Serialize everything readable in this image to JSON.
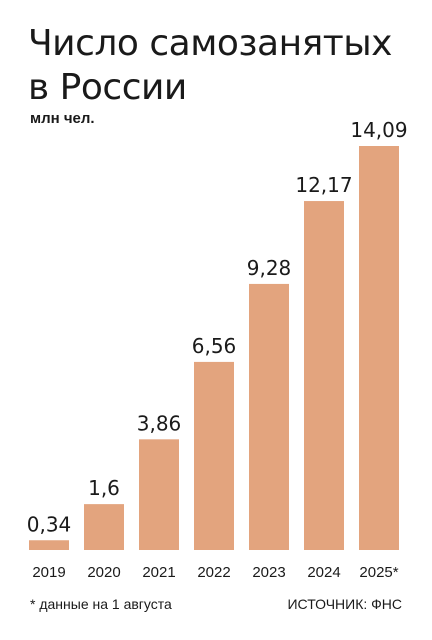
{
  "title_lines": [
    "Число самозанятых",
    "в России"
  ],
  "unit": "млн чел.",
  "footnote": "* данные на 1 августа",
  "source": "ИСТОЧНИК: ФНС",
  "colors": {
    "bar": "#e3a47e",
    "text": "#1a1a1a"
  },
  "chart_data": {
    "type": "bar",
    "title": "Число самозанятых в России",
    "ylabel": "млн чел.",
    "categories": [
      "2019",
      "2020",
      "2021",
      "2022",
      "2023",
      "2024",
      "2025*"
    ],
    "values": [
      0.34,
      1.6,
      3.86,
      6.56,
      9.28,
      12.17,
      14.09
    ],
    "value_labels": [
      "0,34",
      "1,6",
      "3,86",
      "6,56",
      "9,28",
      "12,17",
      "14,09"
    ],
    "ylim": [
      0,
      14.09
    ],
    "grid": false,
    "legend": "none"
  }
}
